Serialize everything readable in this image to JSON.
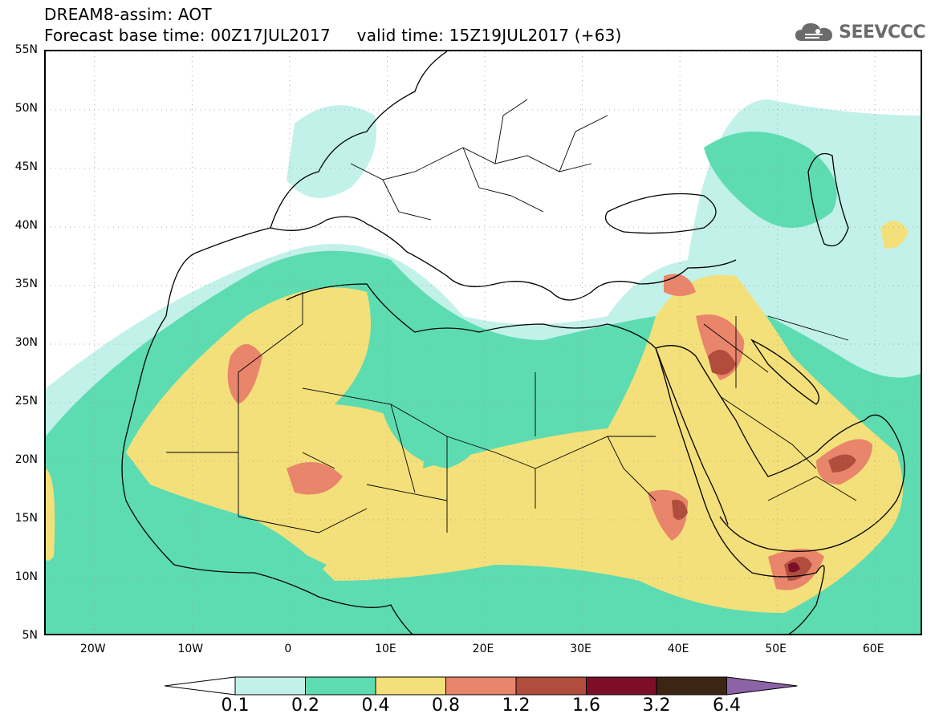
{
  "header": {
    "title_line1": "DREAM8-assim: AOT",
    "title_line2": "Forecast base time: 00Z17JUL2017     valid time: 15Z19JUL2017 (+63)"
  },
  "brand": {
    "logo_text": "SEEVCCC",
    "icon": "cloud-icon"
  },
  "map": {
    "projection": "cylindrical lat-lon",
    "lon_range": [
      -25,
      65
    ],
    "lat_range": [
      5,
      55
    ],
    "lat_labels": [
      "55N",
      "50N",
      "45N",
      "40N",
      "35N",
      "30N",
      "25N",
      "20N",
      "15N",
      "10N",
      "5N"
    ],
    "lon_labels": [
      "20W",
      "10W",
      "0",
      "10E",
      "20E",
      "30E",
      "40E",
      "50E",
      "60E"
    ],
    "grid": "dotted"
  },
  "legend": {
    "ticks": [
      "0.1",
      "0.2",
      "0.4",
      "0.8",
      "1.2",
      "1.6",
      "3.2",
      "6.4"
    ],
    "colors": [
      "#c2f1e9",
      "#5ddcb1",
      "#f4e07a",
      "#e8856b",
      "#b04d3c",
      "#7e0d28",
      "#3d2513",
      "#8c63a6"
    ],
    "under_color": "#ffffff"
  }
}
